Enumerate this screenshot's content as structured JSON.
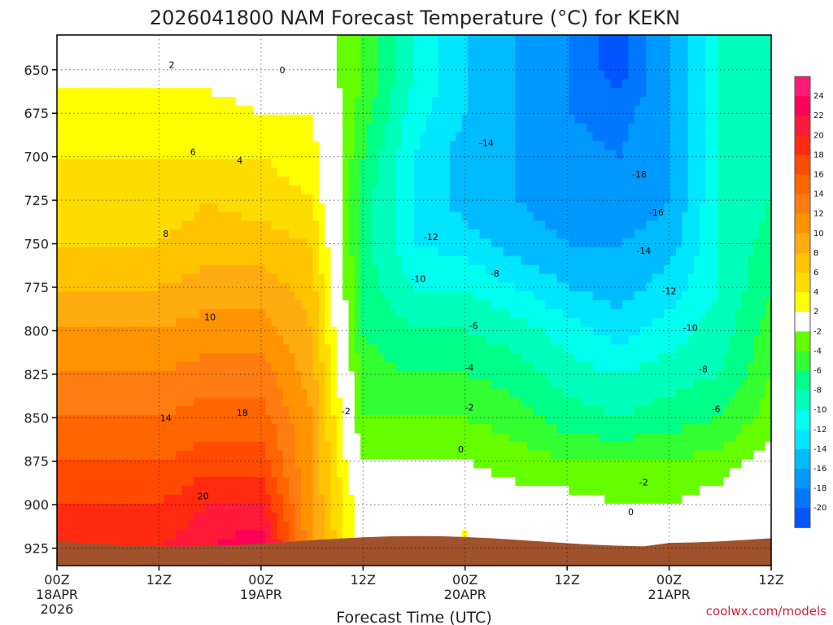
{
  "title": "2026041800 NAM Forecast Temperature (°C) for KEKN",
  "xlabel": "Forecast Time (UTC)",
  "watermark": "coolwx.com/models",
  "chart_data": {
    "type": "heatmap",
    "title": "2026041800 NAM Forecast Temperature (°C) for KEKN",
    "xlabel": "Forecast Time (UTC)",
    "ylabel": "",
    "x_unit": "forecast hour",
    "xlim": [
      0,
      84
    ],
    "ylim": [
      630,
      935
    ],
    "y_inverted": true,
    "y_ticks": [
      650,
      675,
      700,
      725,
      750,
      775,
      800,
      825,
      850,
      875,
      900,
      925
    ],
    "x_ticks": [
      {
        "hour": 0,
        "lines": [
          "00Z",
          "18APR",
          "2026"
        ]
      },
      {
        "hour": 12,
        "lines": [
          "12Z"
        ]
      },
      {
        "hour": 24,
        "lines": [
          "00Z",
          "19APR"
        ]
      },
      {
        "hour": 36,
        "lines": [
          "12Z"
        ]
      },
      {
        "hour": 48,
        "lines": [
          "00Z",
          "20APR"
        ]
      },
      {
        "hour": 60,
        "lines": [
          "12Z"
        ]
      },
      {
        "hour": 72,
        "lines": [
          "00Z",
          "21APR"
        ]
      },
      {
        "hour": 84,
        "lines": [
          "12Z"
        ]
      }
    ],
    "grid": true,
    "colorbar": {
      "positive_labels": [
        "24",
        "22",
        "20",
        "18",
        "16",
        "14",
        "12",
        "10",
        "8",
        "6",
        "4",
        "2"
      ],
      "negative_labels": [
        "-2",
        "-4",
        "-6",
        "-8",
        "-10",
        "-12",
        "-14",
        "-16",
        "-18",
        "-20"
      ],
      "colors_warm": [
        "#ff1a78",
        "#ff0058",
        "#ff1a3a",
        "#ff2a10",
        "#ff4a00",
        "#ff6600",
        "#ff7d10",
        "#ff9400",
        "#ffac10",
        "#ffc400",
        "#ffdc00",
        "#ffff00"
      ],
      "colors_cold": [
        "#66ff00",
        "#33ff33",
        "#00ff88",
        "#00ffbb",
        "#00ffee",
        "#00e6ff",
        "#00bbff",
        "#0099ff",
        "#0077ff",
        "#0055ff"
      ]
    },
    "samples": [
      {
        "hour": 0,
        "temp": [
          1,
          3,
          4,
          5,
          6,
          8,
          10,
          12,
          14,
          16,
          18,
          19
        ]
      },
      {
        "hour": 6,
        "temp": [
          1,
          3,
          4,
          5,
          6,
          8,
          10,
          12,
          14,
          16,
          18,
          19
        ]
      },
      {
        "hour": 12,
        "temp": [
          1,
          3,
          4,
          5,
          6,
          8,
          10,
          12,
          14,
          16,
          18,
          20
        ]
      },
      {
        "hour": 18,
        "temp": [
          1,
          3,
          4,
          6,
          7,
          9,
          11,
          13,
          15,
          17,
          20,
          22
        ]
      },
      {
        "hour": 24,
        "temp": [
          0,
          2,
          4,
          5,
          7,
          9,
          11,
          13,
          15,
          17,
          20,
          24
        ]
      },
      {
        "hour": 30,
        "temp": [
          0,
          2,
          3,
          4,
          6,
          7,
          8,
          9,
          10,
          10,
          10,
          10
        ]
      },
      {
        "hour": 36,
        "temp": [
          -4,
          -5,
          -6,
          -7,
          -7,
          -7,
          -6,
          -5,
          -4,
          -2,
          0,
          1
        ]
      },
      {
        "hour": 42,
        "temp": [
          -10,
          -11,
          -12,
          -12,
          -12,
          -10,
          -8,
          -6,
          -4,
          -2,
          0,
          1
        ]
      },
      {
        "hour": 48,
        "temp": [
          -14,
          -14,
          -15,
          -15,
          -13,
          -10,
          -8,
          -6,
          -4,
          -2,
          0,
          3
        ]
      },
      {
        "hour": 54,
        "temp": [
          -16,
          -16,
          -16,
          -16,
          -15,
          -12,
          -9,
          -7,
          -5,
          -3,
          -1,
          1
        ]
      },
      {
        "hour": 60,
        "temp": [
          -18,
          -18,
          -17,
          -17,
          -16,
          -14,
          -11,
          -9,
          -7,
          -4,
          -1,
          0
        ]
      },
      {
        "hour": 66,
        "temp": [
          -21,
          -19,
          -18,
          -18,
          -16,
          -15,
          -13,
          -10,
          -8,
          -4,
          -2,
          0
        ]
      },
      {
        "hour": 72,
        "temp": [
          -16,
          -16,
          -16,
          -16,
          -15,
          -13,
          -11,
          -9,
          -7,
          -4,
          -2,
          0
        ]
      },
      {
        "hour": 78,
        "temp": [
          -10,
          -10,
          -10,
          -10,
          -10,
          -10,
          -9,
          -8,
          -6,
          -3,
          -1,
          0
        ]
      },
      {
        "hour": 84,
        "temp": [
          -8,
          -8,
          -8,
          -8,
          -7,
          -6,
          -5,
          -4,
          -3,
          -1,
          1,
          1
        ]
      }
    ],
    "contour_labels": [
      {
        "text": "2",
        "hour": 13.5,
        "p": 648
      },
      {
        "text": "0",
        "hour": 26.5,
        "p": 651
      },
      {
        "text": "6",
        "hour": 16.0,
        "p": 698
      },
      {
        "text": "4",
        "hour": 21.5,
        "p": 703
      },
      {
        "text": "8",
        "hour": 12.8,
        "p": 745
      },
      {
        "text": "10",
        "hour": 18.0,
        "p": 793
      },
      {
        "text": "14",
        "hour": 12.8,
        "p": 851
      },
      {
        "text": "18",
        "hour": 21.8,
        "p": 848
      },
      {
        "text": "20",
        "hour": 17.2,
        "p": 896
      },
      {
        "text": "-2",
        "hour": 34.0,
        "p": 847
      },
      {
        "text": "-14",
        "hour": 50.5,
        "p": 693
      },
      {
        "text": "-18",
        "hour": 68.5,
        "p": 711
      },
      {
        "text": "-16",
        "hour": 70.5,
        "p": 733
      },
      {
        "text": "-14",
        "hour": 69.0,
        "p": 755
      },
      {
        "text": "-12",
        "hour": 44.0,
        "p": 747
      },
      {
        "text": "-10",
        "hour": 42.5,
        "p": 771
      },
      {
        "text": "-8",
        "hour": 51.5,
        "p": 768
      },
      {
        "text": "-12",
        "hour": 72.0,
        "p": 778
      },
      {
        "text": "-6",
        "hour": 49.0,
        "p": 798
      },
      {
        "text": "-10",
        "hour": 74.5,
        "p": 799
      },
      {
        "text": "-4",
        "hour": 48.5,
        "p": 822
      },
      {
        "text": "-8",
        "hour": 76.0,
        "p": 823
      },
      {
        "text": "-2",
        "hour": 48.5,
        "p": 845
      },
      {
        "text": "-6",
        "hour": 77.5,
        "p": 846
      },
      {
        "text": "0",
        "hour": 47.5,
        "p": 869
      },
      {
        "text": "-2",
        "hour": 69.0,
        "p": 888
      },
      {
        "text": "0",
        "hour": 67.5,
        "p": 905
      }
    ]
  }
}
